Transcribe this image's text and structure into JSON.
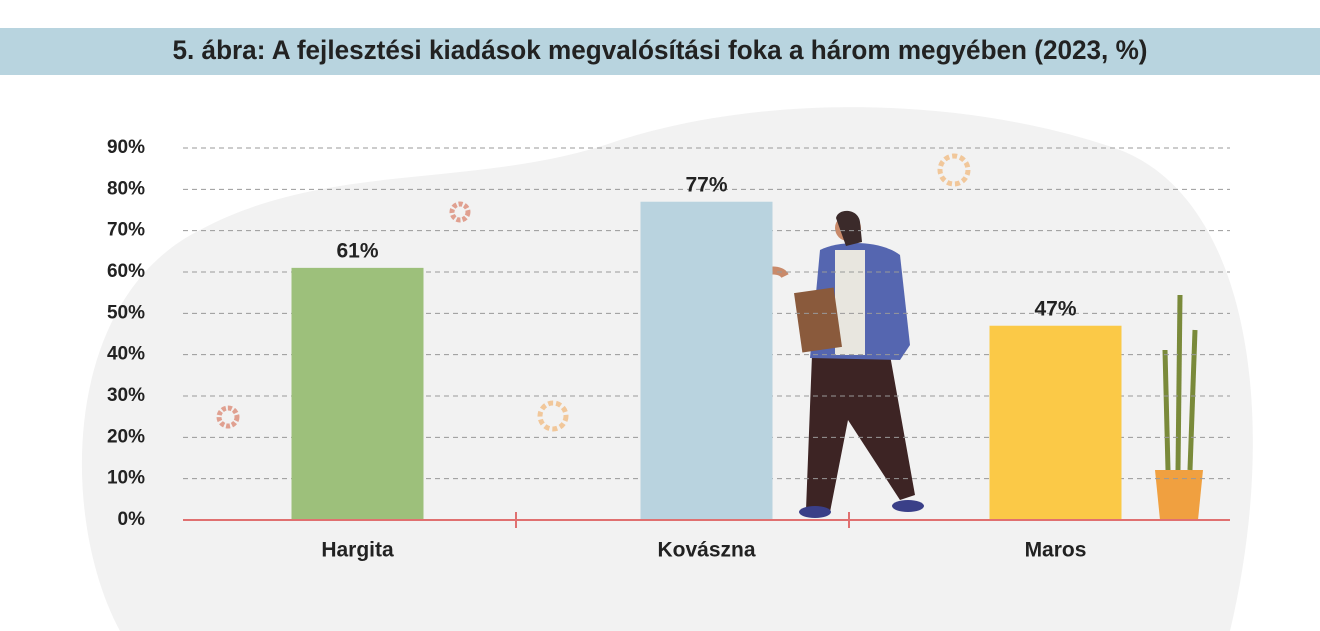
{
  "chart_data": {
    "type": "bar",
    "title": "5. ábra: A fejlesztési kiadások megvalósítási foka a három megyében (2023, %)",
    "categories": [
      "Hargita",
      "Kovászna",
      "Maros"
    ],
    "values": [
      61,
      77,
      47
    ],
    "value_labels": [
      "61%",
      "77%",
      "47%"
    ],
    "colors": [
      "#9dc07b",
      "#b9d3df",
      "#fbc947"
    ],
    "ylim": [
      0,
      90
    ],
    "yticks": [
      {
        "value": 0,
        "label": "0%"
      },
      {
        "value": 10,
        "label": "10%"
      },
      {
        "value": 20,
        "label": "20%"
      },
      {
        "value": 30,
        "label": "30%"
      },
      {
        "value": 40,
        "label": "40%"
      },
      {
        "value": 50,
        "label": "50%"
      },
      {
        "value": 60,
        "label": "60%"
      },
      {
        "value": 70,
        "label": "70%"
      },
      {
        "value": 80,
        "label": "80%"
      },
      {
        "value": 90,
        "label": "90%"
      }
    ],
    "grid": true
  }
}
